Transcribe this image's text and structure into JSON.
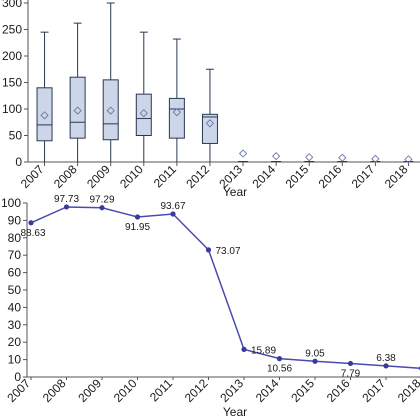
{
  "colors": {
    "box_fill": "#ccd6e8",
    "box_stroke": "#2a3850",
    "line": "#4a4ab0",
    "marker": "#3a3a9c"
  },
  "chart_data": [
    {
      "type": "box",
      "xlabel": "Year",
      "ylabel": "",
      "categories": [
        "2007",
        "2008",
        "2009",
        "2010",
        "2011",
        "2012",
        "2013",
        "2014",
        "2015",
        "2016",
        "2017",
        "2018"
      ],
      "y_ticks": [
        0,
        50,
        100,
        150,
        200,
        250,
        300
      ],
      "y_tick_labels": [
        "0",
        "50",
        "100",
        "150",
        "200",
        "250",
        "300"
      ],
      "ylim": [
        0,
        300
      ],
      "boxes": [
        {
          "min": 0,
          "q1": 40,
          "median": 70,
          "q3": 140,
          "max": 245,
          "mean": 88
        },
        {
          "min": 0,
          "q1": 45,
          "median": 75,
          "q3": 160,
          "max": 262,
          "mean": 97
        },
        {
          "min": 0,
          "q1": 42,
          "median": 72,
          "q3": 155,
          "max": 300,
          "mean": 97
        },
        {
          "min": 0,
          "q1": 50,
          "median": 82,
          "q3": 128,
          "max": 245,
          "mean": 92
        },
        {
          "min": 0,
          "q1": 45,
          "median": 100,
          "q3": 120,
          "max": 232,
          "mean": 94
        },
        {
          "min": 0,
          "q1": 35,
          "median": 85,
          "q3": 90,
          "max": 175,
          "mean": 73
        },
        {
          "mean": 16
        },
        {
          "mean": 11
        },
        {
          "mean": 9
        },
        {
          "mean": 8
        },
        {
          "mean": 6
        },
        {
          "mean": 5
        }
      ]
    },
    {
      "type": "line",
      "xlabel": "Year",
      "ylabel": "",
      "x": [
        "2007",
        "2008",
        "2009",
        "2010",
        "2011",
        "2012",
        "2013",
        "2014",
        "2015",
        "2016",
        "2017",
        "2018"
      ],
      "y_ticks": [
        0,
        10,
        20,
        30,
        40,
        50,
        60,
        70,
        80,
        90,
        100
      ],
      "ylim": [
        0,
        100
      ],
      "series": [
        {
          "values": [
            88.63,
            97.73,
            97.29,
            91.95,
            93.67,
            73.07,
            15.89,
            10.56,
            9.05,
            7.79,
            6.38,
            5.0
          ],
          "labels": [
            "88.63",
            "97.73",
            "97.29",
            "91.95",
            "93.67",
            "73.07",
            "15.89",
            "10.56",
            "9.05",
            "7.79",
            "6.38",
            ""
          ]
        }
      ]
    }
  ]
}
